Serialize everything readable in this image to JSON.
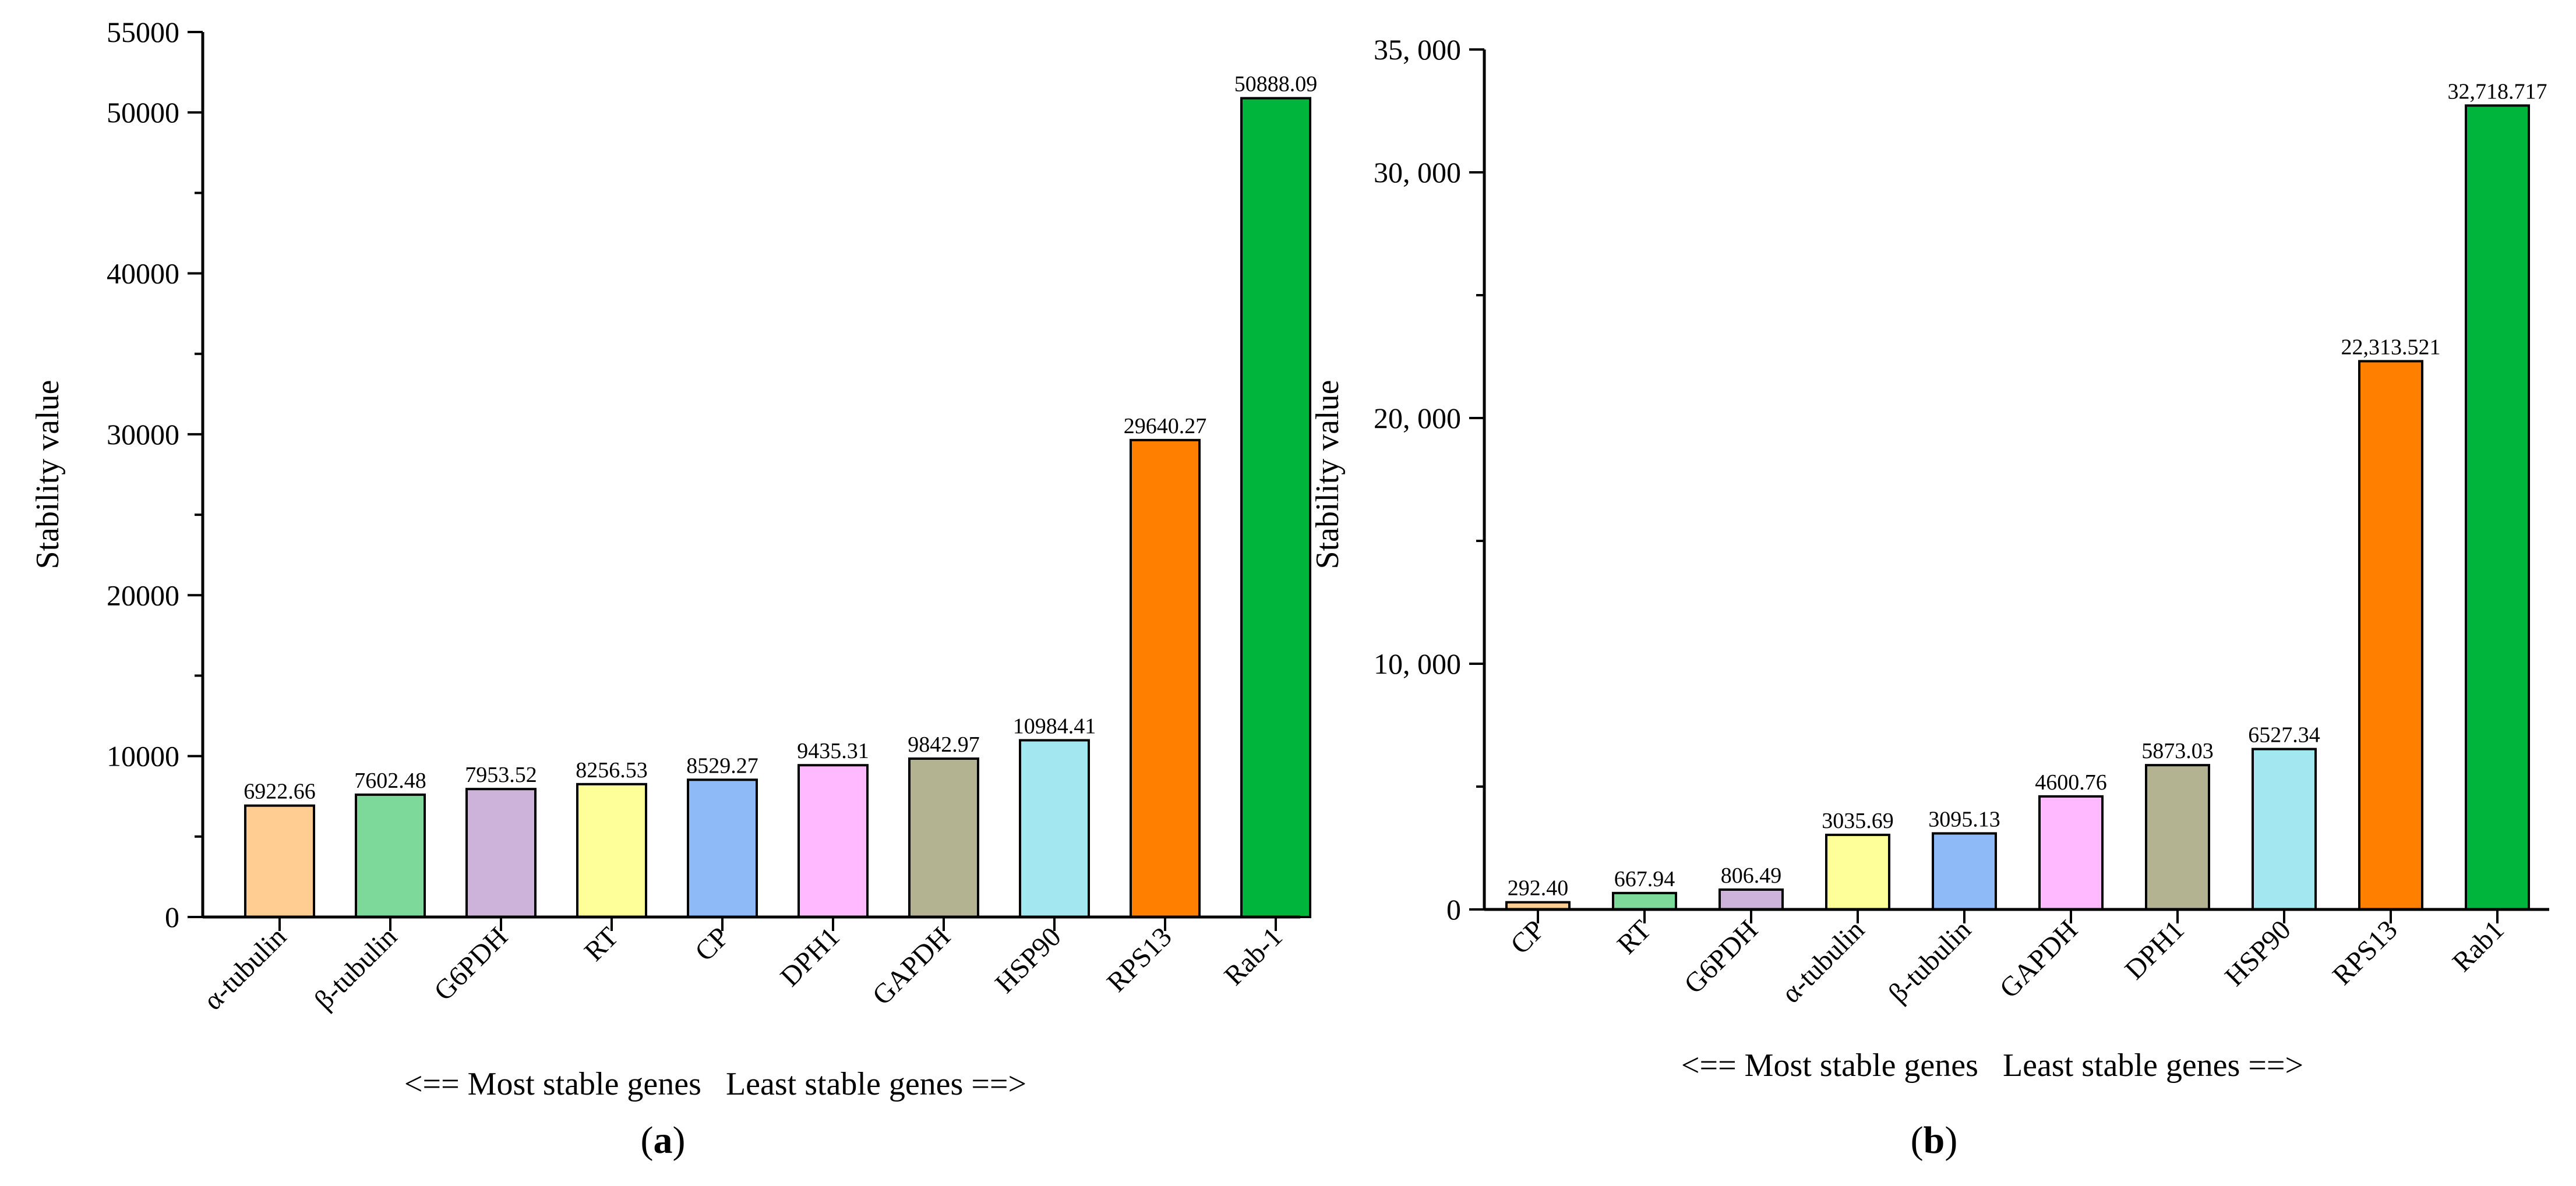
{
  "chart_data": [
    {
      "type": "bar",
      "panel_label_prefix": "(",
      "panel_label_letter": "a",
      "panel_label_suffix": ")",
      "ylabel": "Stability value",
      "xlabel": "<== Most stable genes   Least stable genes ==>",
      "ylim": [
        0,
        55000
      ],
      "yticks": [
        0,
        10000,
        20000,
        30000,
        40000,
        50000,
        55000
      ],
      "ytick_labels": [
        "0",
        "10000",
        "20000",
        "30000",
        "40000",
        "50000",
        "55000"
      ],
      "minor_step": 5000,
      "categories": [
        "α-tubulin",
        "β-tubulin",
        "G6PDH",
        "RT",
        "CP",
        "DPH1",
        "GAPDH",
        "HSP90",
        "RPS13",
        "Rab-1"
      ],
      "values": [
        6922.66,
        7602.48,
        7953.52,
        8256.53,
        8529.27,
        9435.31,
        9842.97,
        10984.41,
        29640.27,
        50888.09
      ],
      "value_labels": [
        "6922.66",
        "7602.48",
        "7953.52",
        "8256.53",
        "8529.27",
        "9435.31",
        "9842.97",
        "10984.41",
        "29640.27",
        "50888.09"
      ],
      "colors": [
        "#FFCC92",
        "#7DD99A",
        "#CDB3DA",
        "#FFFF99",
        "#8EBBF8",
        "#FFB9FF",
        "#B4B391",
        "#A3E7F0",
        "#FF8000",
        "#00B53C"
      ]
    },
    {
      "type": "bar",
      "panel_label_prefix": "(",
      "panel_label_letter": "b",
      "panel_label_suffix": ")",
      "ylabel": "Stability value",
      "xlabel": "<== Most stable genes   Least stable genes ==>",
      "ylim": [
        0,
        35000
      ],
      "yticks": [
        0,
        10000,
        20000,
        30000,
        35000
      ],
      "ytick_labels": [
        "0",
        "10, 000",
        "20, 000",
        "30, 000",
        "35, 000"
      ],
      "minor_step": 5000,
      "categories": [
        "CP",
        "RT",
        "G6PDH",
        "α-tubulin",
        "β-tubulin",
        "GAPDH",
        "DPH1",
        "HSP90",
        "RPS13",
        "Rab1"
      ],
      "values": [
        292.4,
        667.94,
        806.49,
        3035.69,
        3095.13,
        4600.76,
        5873.03,
        6527.34,
        22313.521,
        32718.717
      ],
      "value_labels": [
        "292.40",
        "667.94",
        "806.49",
        "3035.69",
        "3095.13",
        "4600.76",
        "5873.03",
        "6527.34",
        "22,313.521",
        "32,718.717"
      ],
      "colors": [
        "#FFCC92",
        "#7DD99A",
        "#CDB3DA",
        "#FFFF99",
        "#8EBBF8",
        "#FFB9FF",
        "#B4B391",
        "#A3E7F0",
        "#FF8000",
        "#00B53C"
      ]
    }
  ]
}
